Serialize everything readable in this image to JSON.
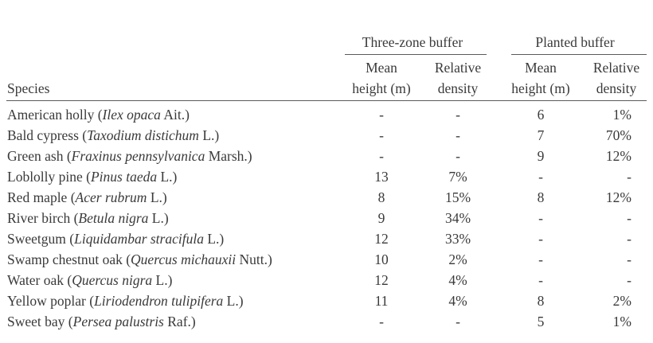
{
  "table": {
    "group_headers": [
      "Three-zone buffer",
      "Planted buffer"
    ],
    "species_header": "Species",
    "sub_headers": [
      [
        "Mean",
        "height (m)"
      ],
      [
        "Relative",
        "density"
      ],
      [
        "Mean",
        "height (m)"
      ],
      [
        "Relative",
        "density"
      ]
    ],
    "rows": [
      {
        "common": "American holly (",
        "latin": "Ilex opaca",
        "author": " Ait.)",
        "values": [
          "-",
          "-",
          "6",
          "1%"
        ]
      },
      {
        "common": "Bald cypress (",
        "latin": "Taxodium distichum",
        "author": " L.)",
        "values": [
          "-",
          "-",
          "7",
          "70%"
        ]
      },
      {
        "common": "Green ash (",
        "latin": "Fraxinus pennsylvanica",
        "author": " Marsh.)",
        "values": [
          "-",
          "-",
          "9",
          "12%"
        ]
      },
      {
        "common": "Loblolly pine (",
        "latin": "Pinus taeda",
        "author": " L.)",
        "values": [
          "13",
          "7%",
          "-",
          "-"
        ]
      },
      {
        "common": "Red maple (",
        "latin": "Acer rubrum",
        "author": " L.)",
        "values": [
          "8",
          "15%",
          "8",
          "12%"
        ]
      },
      {
        "common": "River birch (",
        "latin": "Betula nigra",
        "author": " L.)",
        "values": [
          "9",
          "34%",
          "-",
          "-"
        ]
      },
      {
        "common": "Sweetgum (",
        "latin": "Liquidambar stracifula",
        "author": " L.)",
        "values": [
          "12",
          "33%",
          "-",
          "-"
        ]
      },
      {
        "common": "Swamp chestnut oak (",
        "latin": "Quercus michauxii",
        "author": " Nutt.)",
        "values": [
          "10",
          "2%",
          "-",
          "-"
        ]
      },
      {
        "common": "Water oak (",
        "latin": "Quercus nigra",
        "author": " L.)",
        "values": [
          "12",
          "4%",
          "-",
          "-"
        ]
      },
      {
        "common": "Yellow poplar (",
        "latin": "Liriodendron tulipifera",
        "author": " L.)",
        "values": [
          "11",
          "4%",
          "8",
          "2%"
        ]
      },
      {
        "common": "Sweet bay (",
        "latin": "Persea palustris",
        "author": " Raf.)",
        "values": [
          "-",
          "-",
          "5",
          "1%"
        ]
      }
    ]
  }
}
